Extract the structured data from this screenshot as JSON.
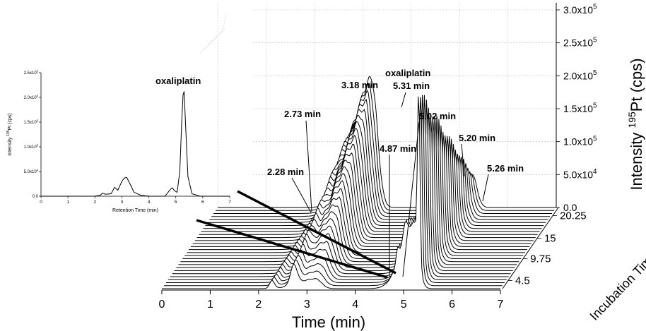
{
  "chart_data": [
    {
      "type": "line",
      "panel": "inset",
      "title": "",
      "peak_label": "oxaliplatin",
      "xlabel": "Retention Time (min)",
      "ylabel_prefix": "Intensity ",
      "ylabel_sup": "195",
      "ylabel_suffix": "Pt (cps)",
      "xlim": [
        0,
        7
      ],
      "ylim": [
        0,
        250000
      ],
      "x_ticks": [
        "0",
        "1",
        "2",
        "3",
        "4",
        "5",
        "6",
        "7"
      ],
      "y_ticks": [
        "0.0",
        "5.0x10⁴",
        "1.0x10⁵",
        "1.5x10⁵",
        "2.0x10⁵",
        "2.5x10⁵"
      ],
      "series": [
        {
          "x": [
            0,
            2.0,
            2.2,
            2.28,
            2.4,
            2.6,
            2.73,
            2.85,
            3.0,
            3.1,
            3.18,
            3.3,
            3.45,
            3.7,
            4.0,
            4.6,
            4.8,
            4.87,
            4.95,
            5.05,
            5.15,
            5.22,
            5.27,
            5.31,
            5.36,
            5.45,
            5.6,
            5.9,
            7.0
          ],
          "y": [
            0,
            0,
            2000,
            6000,
            4000,
            5000,
            18000,
            12000,
            30000,
            37000,
            38000,
            25000,
            8000,
            2000,
            0,
            0,
            14000,
            17000,
            11000,
            8000,
            50000,
            150000,
            205000,
            212000,
            150000,
            40000,
            5000,
            0,
            0
          ]
        }
      ]
    },
    {
      "type": "line",
      "panel": "main-3d",
      "title": "",
      "xlabel": "Time (min)",
      "ylabel_prefix": "Intensity ",
      "ylabel_sup": "195",
      "ylabel_suffix": "Pt (cps)",
      "zlabel": "Incubation Time (h)",
      "xlim": [
        0,
        7
      ],
      "ylim": [
        0,
        300000
      ],
      "x_ticks": [
        "0",
        "1",
        "2",
        "3",
        "4",
        "5",
        "6",
        "7"
      ],
      "y_ticks": [
        "0.0",
        "5.0x10⁴",
        "1.0x10⁵",
        "1.5x10⁵",
        "2.0x10⁵",
        "2.5x10⁵",
        "3.0x10⁵"
      ],
      "z_ticks": [
        "4.5",
        "9.75",
        "15",
        "20.25"
      ],
      "annotations": [
        "2.28 min",
        "2.73 min",
        "3.18 min",
        "oxaliplatin",
        "5.31 min",
        "5.02 min",
        "4.87 min",
        "5.20 min",
        "5.26 min"
      ],
      "n_traces": 28,
      "peaks": [
        {
          "retention_time_min": 2.28,
          "first_intensity": 12000,
          "last_intensity": 12000
        },
        {
          "retention_time_min": 2.73,
          "first_intensity": 30000,
          "last_intensity": 30000
        },
        {
          "retention_time_min": 3.18,
          "first_intensity": 15000,
          "last_intensity": 195000
        },
        {
          "retention_time_min": 4.87,
          "first_intensity": 20000,
          "last_intensity": 3000
        },
        {
          "retention_time_min": 5.02,
          "first_intensity": 22000,
          "last_intensity": 4000
        },
        {
          "retention_time_min": 5.2,
          "first_intensity": 100000,
          "last_intensity": 8000
        },
        {
          "retention_time_min": 5.26,
          "first_intensity": 0,
          "last_intensity": 45000
        },
        {
          "retention_time_min": 5.31,
          "first_intensity": 260000,
          "last_intensity": 0
        }
      ]
    }
  ]
}
